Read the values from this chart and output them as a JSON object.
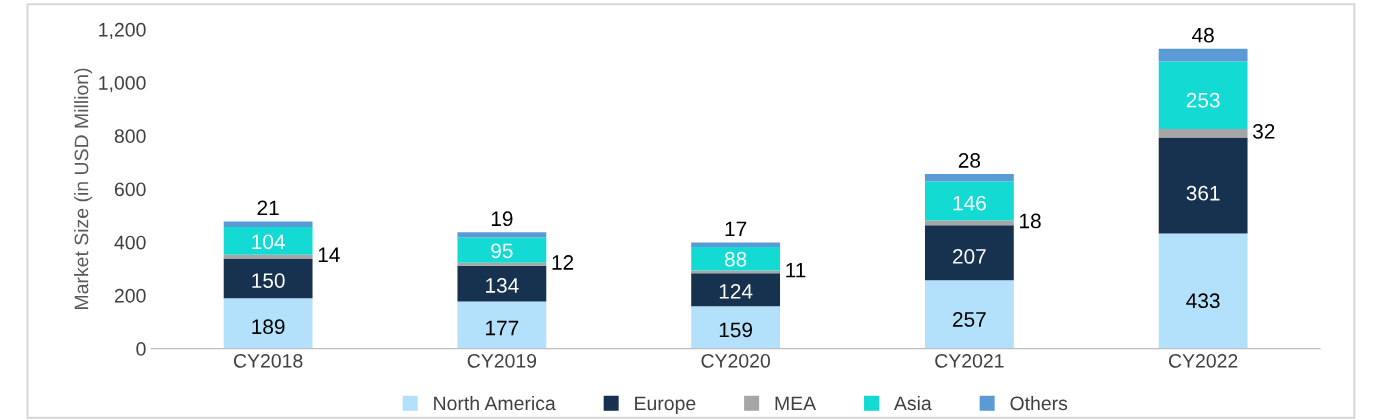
{
  "chart_data": {
    "type": "bar",
    "stacked": true,
    "ylabel": "Market Size (in USD Million)",
    "categories": [
      "CY2018",
      "CY2019",
      "CY2020",
      "CY2021",
      "CY2022"
    ],
    "series": [
      {
        "name": "North America",
        "color": "#b3e0fb",
        "values": [
          189,
          177,
          159,
          257,
          433
        ]
      },
      {
        "name": "Europe",
        "color": "#16324f",
        "values": [
          150,
          134,
          124,
          207,
          361
        ]
      },
      {
        "name": "MEA",
        "color": "#a6a6a6",
        "values": [
          14,
          12,
          11,
          18,
          32
        ]
      },
      {
        "name": "Asia",
        "color": "#13dbd4",
        "values": [
          104,
          95,
          88,
          146,
          253
        ]
      },
      {
        "name": "Others",
        "color": "#5b9bd5",
        "values": [
          21,
          19,
          17,
          28,
          48
        ]
      }
    ],
    "ylim": [
      0,
      1200
    ],
    "yticks": [
      0,
      200,
      400,
      600,
      800,
      {
        "value": 1000,
        "label": "1,000"
      },
      {
        "value": 1200,
        "label": "1,200"
      }
    ],
    "data_labels": true,
    "legend": "bottom",
    "grid": false
  }
}
